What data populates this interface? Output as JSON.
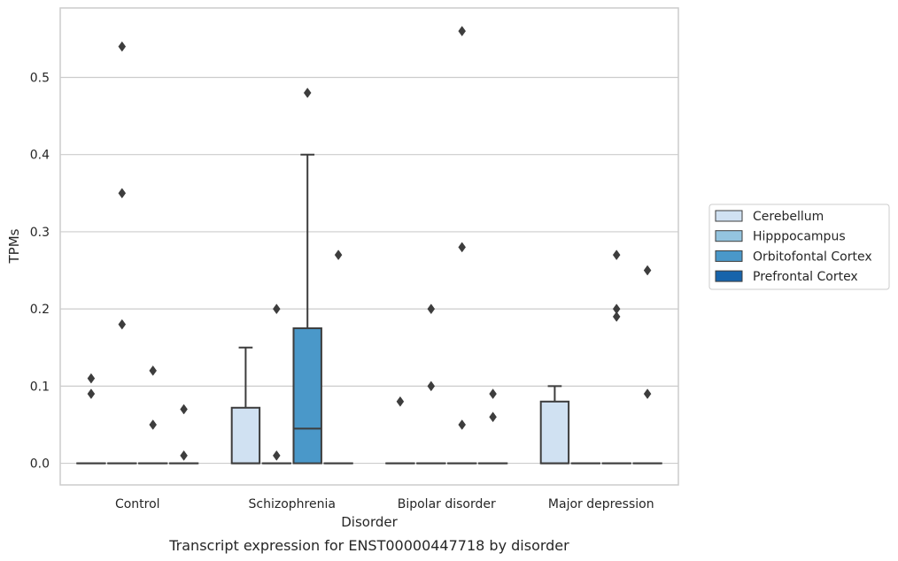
{
  "chart_data": {
    "type": "box",
    "caption": "Transcript expression for ENST00000447718 by disorder",
    "xlabel": "Disorder",
    "ylabel": "TPMs",
    "ylim": [
      -0.028,
      0.59
    ],
    "yticks": [
      0.0,
      0.1,
      0.2,
      0.3,
      0.4,
      0.5
    ],
    "ytick_labels": [
      "0.0",
      "0.1",
      "0.2",
      "0.3",
      "0.4",
      "0.5"
    ],
    "grid": "horizontal",
    "categories": [
      "Control",
      "Schizophrenia",
      "Bipolar disorder",
      "Major depression"
    ],
    "legend": {
      "placement": "right",
      "entries": [
        {
          "name": "Cerebellum",
          "color": "#d0e1f2"
        },
        {
          "name": "Hipppocampus",
          "color": "#94c4df"
        },
        {
          "name": "Orbitofontal Cortex",
          "color": "#4a98c9"
        },
        {
          "name": "Prefrontal Cortex",
          "color": "#1764ab"
        }
      ]
    },
    "boxes": [
      {
        "category": "Control",
        "series": "Cerebellum",
        "q1": 0,
        "median": 0,
        "q3": 0,
        "whislo": 0,
        "whishi": 0,
        "fliers": [
          0.09,
          0.11
        ]
      },
      {
        "category": "Control",
        "series": "Hipppocampus",
        "q1": 0,
        "median": 0,
        "q3": 0,
        "whislo": 0,
        "whishi": 0,
        "fliers": [
          0.18,
          0.35,
          0.54
        ]
      },
      {
        "category": "Control",
        "series": "Orbitofontal Cortex",
        "q1": 0,
        "median": 0,
        "q3": 0,
        "whislo": 0,
        "whishi": 0,
        "fliers": [
          0.05,
          0.12
        ]
      },
      {
        "category": "Control",
        "series": "Prefrontal Cortex",
        "q1": 0,
        "median": 0,
        "q3": 0,
        "whislo": 0,
        "whishi": 0,
        "fliers": [
          0.01,
          0.07
        ]
      },
      {
        "category": "Schizophrenia",
        "series": "Cerebellum",
        "q1": 0,
        "median": 0,
        "q3": 0.072,
        "whislo": 0,
        "whishi": 0.15,
        "fliers": []
      },
      {
        "category": "Schizophrenia",
        "series": "Hipppocampus",
        "q1": 0,
        "median": 0,
        "q3": 0,
        "whislo": 0,
        "whishi": 0,
        "fliers": [
          0.01,
          0.2
        ]
      },
      {
        "category": "Schizophrenia",
        "series": "Orbitofontal Cortex",
        "q1": 0,
        "median": 0.045,
        "q3": 0.175,
        "whislo": 0,
        "whishi": 0.4,
        "fliers": [
          0.48
        ]
      },
      {
        "category": "Schizophrenia",
        "series": "Prefrontal Cortex",
        "q1": 0,
        "median": 0,
        "q3": 0,
        "whislo": 0,
        "whishi": 0,
        "fliers": [
          0.27
        ]
      },
      {
        "category": "Bipolar disorder",
        "series": "Cerebellum",
        "q1": 0,
        "median": 0,
        "q3": 0,
        "whislo": 0,
        "whishi": 0,
        "fliers": [
          0.08
        ]
      },
      {
        "category": "Bipolar disorder",
        "series": "Hipppocampus",
        "q1": 0,
        "median": 0,
        "q3": 0,
        "whislo": 0,
        "whishi": 0,
        "fliers": [
          0.1,
          0.2
        ]
      },
      {
        "category": "Bipolar disorder",
        "series": "Orbitofontal Cortex",
        "q1": 0,
        "median": 0,
        "q3": 0,
        "whislo": 0,
        "whishi": 0,
        "fliers": [
          0.05,
          0.28,
          0.56
        ]
      },
      {
        "category": "Bipolar disorder",
        "series": "Prefrontal Cortex",
        "q1": 0,
        "median": 0,
        "q3": 0,
        "whislo": 0,
        "whishi": 0,
        "fliers": [
          0.06,
          0.09
        ]
      },
      {
        "category": "Major depression",
        "series": "Cerebellum",
        "q1": 0,
        "median": 0,
        "q3": 0.08,
        "whislo": 0,
        "whishi": 0.1,
        "fliers": []
      },
      {
        "category": "Major depression",
        "series": "Hipppocampus",
        "q1": 0,
        "median": 0,
        "q3": 0,
        "whislo": 0,
        "whishi": 0,
        "fliers": []
      },
      {
        "category": "Major depression",
        "series": "Orbitofontal Cortex",
        "q1": 0,
        "median": 0,
        "q3": 0,
        "whislo": 0,
        "whishi": 0,
        "fliers": [
          0.19,
          0.2,
          0.27
        ]
      },
      {
        "category": "Major depression",
        "series": "Prefrontal Cortex",
        "q1": 0,
        "median": 0,
        "q3": 0,
        "whislo": 0,
        "whishi": 0,
        "fliers": [
          0.09,
          0.25
        ]
      }
    ]
  }
}
